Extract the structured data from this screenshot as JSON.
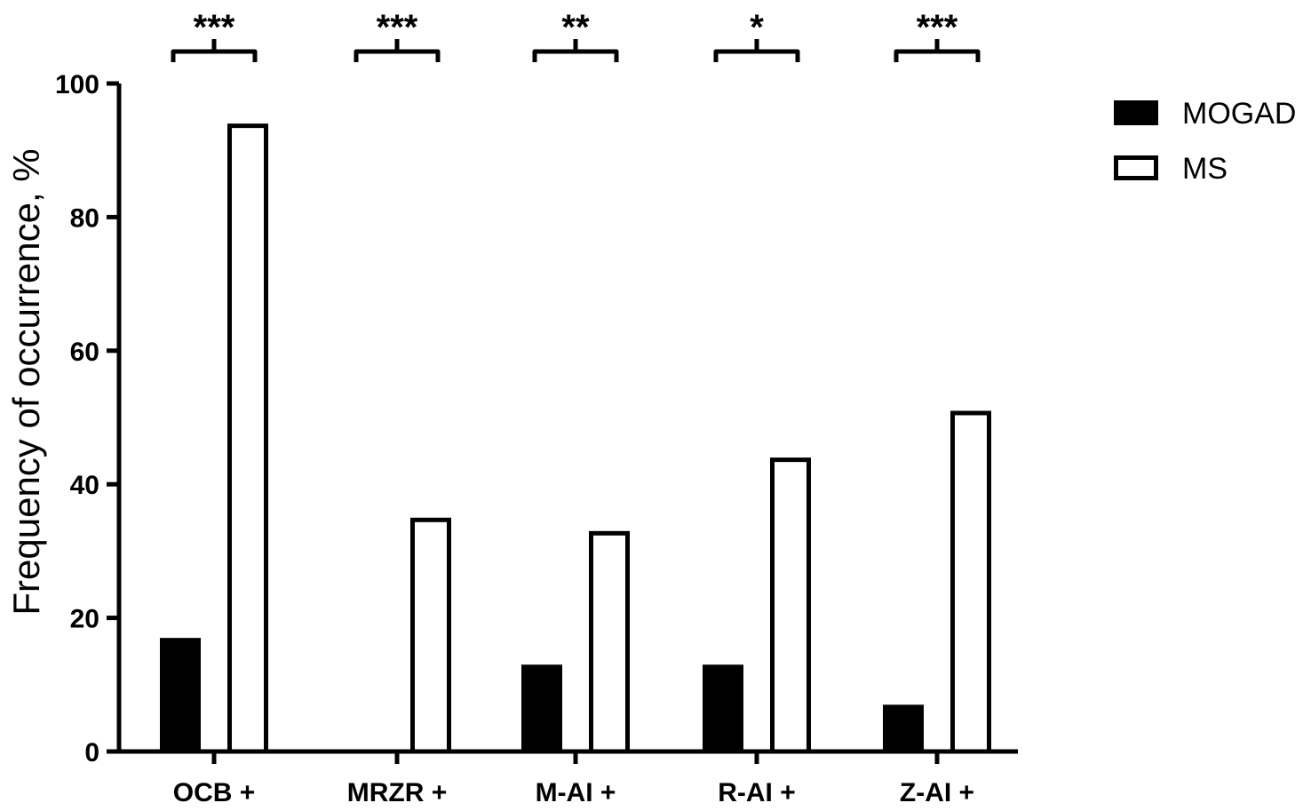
{
  "chart_data": {
    "type": "bar",
    "categories": [
      "OCB +",
      "MRZR +",
      "M-AI +",
      "R-AI +",
      "Z-AI +"
    ],
    "series": [
      {
        "name": "MOGAD",
        "values": [
          17,
          0,
          13,
          13,
          7
        ],
        "color": "#000000",
        "fill": "solid"
      },
      {
        "name": "MS",
        "values": [
          94,
          35,
          33,
          44,
          51
        ],
        "color": "#000000",
        "fill": "hollow"
      }
    ],
    "ylabel": "Frequency of occurrence, %",
    "xlabel": "",
    "ylim": [
      0,
      100
    ],
    "yticks": [
      0,
      20,
      40,
      60,
      80,
      100
    ],
    "significance": [
      "***",
      "***",
      "**",
      "*",
      "***"
    ],
    "legend": {
      "placement": "top-right",
      "entries": [
        "MOGAD",
        "MS"
      ]
    },
    "grid": false
  }
}
